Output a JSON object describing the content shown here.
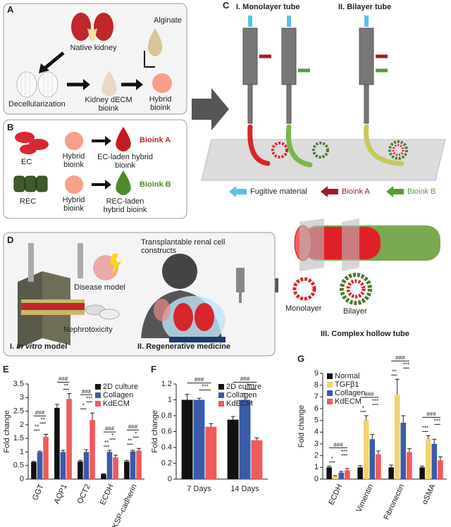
{
  "panel_a": {
    "letter": "A",
    "native_kidney": "Native kidney",
    "alginate": "Alginate",
    "decellularization": "Decellularization",
    "kidney_decm_bioink": "Kidney dECM bioink",
    "hybrid_bioink": "Hybrid bioink"
  },
  "panel_b": {
    "letter": "B",
    "ec": "EC",
    "hybrid_bioink_1": "Hybrid bioink",
    "ec_laden": "EC-laden hybrid bioink",
    "bioink_a": "Bioink A",
    "rec": "REC",
    "hybrid_bioink_2": "Hybrid bioink",
    "rec_laden": "REC-laden hybrid bioink",
    "bioink_b": "Bioink B"
  },
  "panel_c": {
    "letter": "C",
    "monolayer_tube": "I. Monolayer tube",
    "bilayer_tube": "II. Bilayer tube",
    "legend": [
      "Fugitive material",
      "Bioink A",
      "Bioink B"
    ]
  },
  "panel_iii": {
    "monolayer": "Monolayer",
    "bilayer": "Bilayer",
    "title": "III. Complex hollow tube"
  },
  "panel_d": {
    "letter": "D",
    "transplantable": "Transplantable renal cell constructs",
    "disease_model": "Disease model",
    "nephrotoxicity": "Nephrotoxicity",
    "in_vitro": [
      "I.",
      "In vitro",
      "model"
    ],
    "regenerative": "II. Regenerative medicine"
  },
  "chart_data": [
    {
      "type": "bar",
      "panel": "E",
      "ylabel": "Fold change",
      "legend": "upper right",
      "categories": [
        "GGT",
        "AQP1",
        "OCT2",
        "ECDH",
        "KSP-cadherin"
      ],
      "series": [
        {
          "name": "2D culture",
          "color": "#111111",
          "values": [
            0.63,
            2.62,
            0.65,
            0.18,
            0.65
          ],
          "errors": [
            0.02,
            0.13,
            0.04,
            0.02,
            0.04
          ]
        },
        {
          "name": "Collagen",
          "color": "#3a5ba8",
          "values": [
            1.0,
            1.0,
            1.0,
            1.0,
            1.02
          ],
          "errors": [
            0.03,
            0.06,
            0.08,
            0.06,
            0.04
          ]
        },
        {
          "name": "KdECM",
          "color": "#f05a5a",
          "values": [
            1.55,
            2.95,
            2.18,
            0.8,
            1.05
          ],
          "errors": [
            0.1,
            0.2,
            0.25,
            0.08,
            0.08
          ]
        }
      ],
      "ylim": [
        0,
        3.5
      ],
      "yticks": [
        0,
        0.5,
        1,
        1.5,
        2,
        2.5,
        3,
        3.5
      ],
      "significance": [
        [
          "###",
          "**",
          "**"
        ],
        [
          "###",
          "**"
        ],
        [
          "###",
          "***",
          "*"
        ],
        [
          "###",
          "*",
          "**"
        ],
        [
          "###",
          "*",
          "**"
        ]
      ]
    },
    {
      "type": "bar",
      "panel": "F",
      "ylabel": "Fold change",
      "legend": "upper right",
      "categories": [
        "7 Days",
        "14 Days"
      ],
      "series": [
        {
          "name": "2D culture",
          "color": "#111111",
          "values": [
            1.0,
            0.75
          ],
          "errors": [
            0.07,
            0.04
          ]
        },
        {
          "name": "Collagen",
          "color": "#3a5ba8",
          "values": [
            1.0,
            1.0
          ],
          "errors": [
            0.02,
            0.08
          ]
        },
        {
          "name": "KdECM",
          "color": "#f05a5a",
          "values": [
            0.66,
            0.49
          ],
          "errors": [
            0.04,
            0.03
          ]
        }
      ],
      "ylim": [
        0,
        1.2
      ],
      "yticks": [
        0,
        0.2,
        0.4,
        0.6,
        0.8,
        1,
        1.2
      ],
      "significance": [
        [
          "###",
          "***"
        ],
        [
          "###",
          "***"
        ]
      ]
    },
    {
      "type": "bar",
      "panel": "G",
      "ylabel": "Fold change",
      "legend": "upper left",
      "categories": [
        "ECDH",
        "Vimentin",
        "Fibronectin",
        "αSMA"
      ],
      "series": [
        {
          "name": "Normal",
          "color": "#111111",
          "values": [
            1.0,
            1.0,
            1.0,
            1.0
          ],
          "errors": [
            0.1,
            0.15,
            0.2,
            0.1
          ]
        },
        {
          "name": "TGFβ1",
          "color": "#f2d36b",
          "values": [
            0.25,
            5.0,
            7.2,
            3.4
          ],
          "errors": [
            0.05,
            0.4,
            1.3,
            0.3
          ]
        },
        {
          "name": "Collagen",
          "color": "#3a5ba8",
          "values": [
            0.55,
            3.4,
            4.8,
            3.0
          ],
          "errors": [
            0.1,
            0.4,
            0.6,
            0.4
          ]
        },
        {
          "name": "KdECM",
          "color": "#f05a5a",
          "values": [
            0.75,
            2.1,
            2.3,
            1.6
          ],
          "errors": [
            0.15,
            0.3,
            0.3,
            0.3
          ]
        }
      ],
      "ylim": [
        0,
        9
      ],
      "yticks": [
        0,
        1,
        2,
        3,
        4,
        5,
        6,
        7,
        8,
        9
      ],
      "significance": [
        [
          "###",
          "***",
          "*"
        ],
        [
          "###",
          "***",
          "*"
        ],
        [
          "###",
          "***",
          "**"
        ],
        [
          "###",
          "***",
          "***"
        ]
      ]
    }
  ]
}
